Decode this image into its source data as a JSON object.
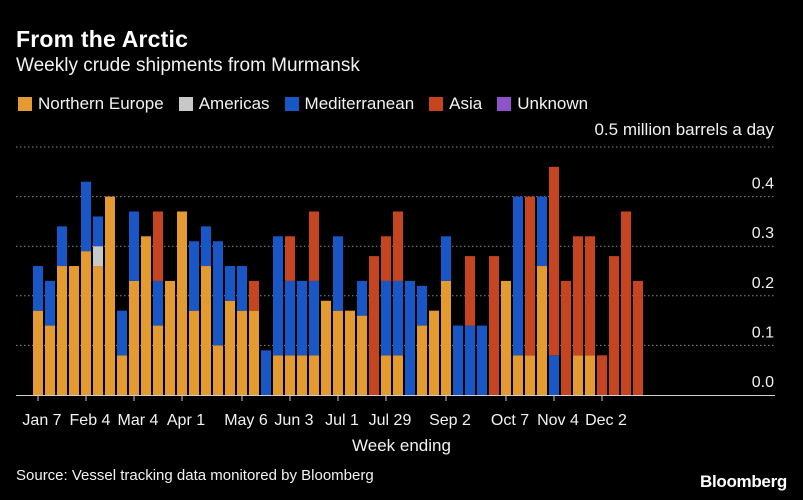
{
  "header": {
    "title": "From the Arctic",
    "subtitle": "Weekly crude shipments from Murmansk",
    "unit_label": "0.5 million barrels a day"
  },
  "legend": [
    {
      "name": "Northern Europe",
      "color": "#e39b31"
    },
    {
      "name": "Americas",
      "color": "#c8c8c8"
    },
    {
      "name": "Mediterranean",
      "color": "#1a57c6"
    },
    {
      "name": "Asia",
      "color": "#c4451f"
    },
    {
      "name": "Unknown",
      "color": "#8c54c8"
    }
  ],
  "footer": {
    "source": "Source: Vessel tracking data monitored by Bloomberg",
    "brand": "Bloomberg"
  },
  "chart_data": {
    "type": "bar",
    "stacked": true,
    "title": "From the Arctic",
    "subtitle": "Weekly crude shipments from Murmansk",
    "xlabel": "Week ending",
    "ylabel": "",
    "ylim": [
      0,
      0.5
    ],
    "y_ticks": [
      "0.0",
      "0.1",
      "0.2",
      "0.3",
      "0.4"
    ],
    "y_axis_position": "right",
    "grid": true,
    "legend_position": "top-left",
    "x_tick_labels": [
      {
        "label": "Jan 7",
        "index": 0
      },
      {
        "label": "Feb 4",
        "index": 4
      },
      {
        "label": "Mar 4",
        "index": 8
      },
      {
        "label": "Apr 1",
        "index": 12
      },
      {
        "label": "May 6",
        "index": 17
      },
      {
        "label": "Jun 3",
        "index": 21
      },
      {
        "label": "Jul 1",
        "index": 25
      },
      {
        "label": "Jul 29",
        "index": 29
      },
      {
        "label": "Sep 2",
        "index": 34
      },
      {
        "label": "Oct 7",
        "index": 39
      },
      {
        "label": "Nov 4",
        "index": 43
      },
      {
        "label": "Dec 2",
        "index": 47
      }
    ],
    "categories": [
      "Jan 7",
      "Jan 14",
      "Jan 21",
      "Jan 28",
      "Feb 4",
      "Feb 11",
      "Feb 18",
      "Feb 25",
      "Mar 4",
      "Mar 11",
      "Mar 18",
      "Mar 25",
      "Apr 1",
      "Apr 8",
      "Apr 15",
      "Apr 22",
      "Apr 29",
      "May 6",
      "May 13",
      "May 20",
      "May 27",
      "Jun 3",
      "Jun 10",
      "Jun 17",
      "Jun 24",
      "Jul 1",
      "Jul 8",
      "Jul 15",
      "Jul 22",
      "Jul 29",
      "Aug 5",
      "Aug 12",
      "Aug 19",
      "Aug 26",
      "Sep 2",
      "Sep 9",
      "Sep 16",
      "Sep 23",
      "Sep 30",
      "Oct 7",
      "Oct 14",
      "Oct 21",
      "Oct 28",
      "Nov 4",
      "Nov 11",
      "Nov 18",
      "Nov 25",
      "Dec 2",
      "Dec 9",
      "Dec 16",
      "Dec 23"
    ],
    "series": [
      {
        "name": "Northern Europe",
        "color": "#e39b31",
        "values": [
          0.17,
          0.14,
          0.26,
          0.26,
          0.29,
          0.26,
          0.4,
          0.08,
          0.23,
          0.32,
          0.14,
          0.23,
          0.37,
          0.17,
          0.26,
          0.1,
          0.19,
          0.17,
          0.17,
          0,
          0.08,
          0.08,
          0.08,
          0.08,
          0.19,
          0.17,
          0.17,
          0.16,
          0,
          0.08,
          0.08,
          0,
          0.14,
          0.17,
          0.23,
          0,
          0,
          0,
          0,
          0.23,
          0.08,
          0.08,
          0.26,
          0,
          0,
          0.08,
          0.08,
          0,
          0,
          0,
          0
        ]
      },
      {
        "name": "Americas",
        "color": "#c8c8c8",
        "values": [
          0,
          0,
          0,
          0,
          0,
          0.04,
          0,
          0,
          0,
          0,
          0,
          0,
          0,
          0,
          0,
          0,
          0,
          0,
          0,
          0,
          0,
          0,
          0,
          0,
          0,
          0,
          0,
          0,
          0,
          0,
          0,
          0,
          0,
          0,
          0,
          0,
          0,
          0,
          0,
          0,
          0,
          0,
          0,
          0,
          0,
          0,
          0,
          0,
          0,
          0,
          0
        ]
      },
      {
        "name": "Mediterranean",
        "color": "#1a57c6",
        "values": [
          0.09,
          0.09,
          0.08,
          0,
          0.14,
          0.06,
          0,
          0.09,
          0.14,
          0,
          0.09,
          0,
          0,
          0.14,
          0.08,
          0.21,
          0.07,
          0.09,
          0,
          0.09,
          0.24,
          0.15,
          0.15,
          0.15,
          0,
          0.15,
          0,
          0.07,
          0,
          0.15,
          0.15,
          0.23,
          0.08,
          0,
          0.09,
          0.14,
          0.14,
          0.14,
          0,
          0,
          0.32,
          0,
          0.14,
          0.08,
          0,
          0,
          0,
          0,
          0,
          0,
          0
        ]
      },
      {
        "name": "Asia",
        "color": "#c4451f",
        "values": [
          0,
          0,
          0,
          0,
          0,
          0,
          0,
          0,
          0,
          0,
          0.14,
          0,
          0,
          0,
          0,
          0,
          0,
          0,
          0.06,
          0,
          0,
          0.09,
          0,
          0.14,
          0,
          0,
          0,
          0,
          0.28,
          0.09,
          0.14,
          0,
          0,
          0,
          0,
          0,
          0.14,
          0,
          0.28,
          0,
          0,
          0.32,
          0,
          0.38,
          0.23,
          0.24,
          0.24,
          0.08,
          0.28,
          0.37,
          0.23
        ]
      },
      {
        "name": "Unknown",
        "color": "#8c54c8",
        "values": [
          0,
          0,
          0,
          0,
          0,
          0,
          0,
          0,
          0,
          0,
          0,
          0,
          0,
          0,
          0,
          0,
          0,
          0,
          0,
          0,
          0,
          0,
          0,
          0,
          0,
          0,
          0,
          0,
          0,
          0,
          0,
          0,
          0,
          0,
          0,
          0,
          0,
          0,
          0,
          0,
          0,
          0,
          0,
          0,
          0,
          0,
          0,
          0,
          0,
          0,
          0
        ]
      }
    ]
  }
}
